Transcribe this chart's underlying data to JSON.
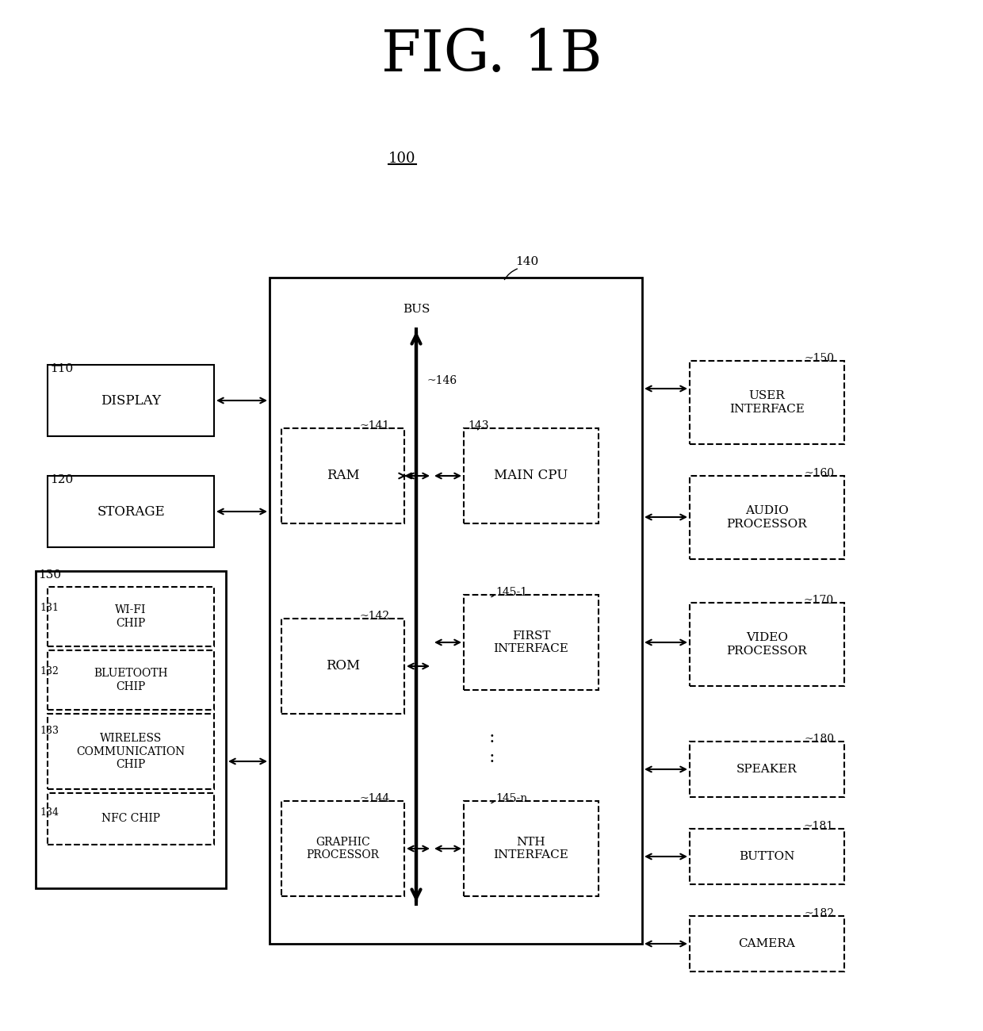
{
  "title": "FIG. 1B",
  "bg_color": "#ffffff",
  "box_color": "#ffffff",
  "box_edge": "#000000",
  "text_color": "#000000",
  "label_100": "100",
  "label_140": "140",
  "label_110": "110",
  "label_120": "120",
  "label_130": "130",
  "label_131": "131",
  "label_132": "132",
  "label_133": "133",
  "label_134": "134",
  "label_141": "141",
  "label_142": "142",
  "label_143": "143",
  "label_144": "144",
  "label_146": "146",
  "label_1451": "145-1",
  "label_145n": "145-n",
  "label_150": "150",
  "label_160": "160",
  "label_170": "170",
  "label_180": "180",
  "label_181": "181",
  "label_182": "182",
  "text_display": "DISPLAY",
  "text_storage": "STORAGE",
  "text_wifi": "WI-FI\nCHIP",
  "text_bluetooth": "BLUETOOTH\nCHIP",
  "text_wireless": "WIRELESS\nCOMMUNICATION\nCHIP",
  "text_nfc": "NFC CHIP",
  "text_ram": "RAM",
  "text_rom": "ROM",
  "text_graphic": "GRAPHIC\nPROCESSOR",
  "text_bus": "BUS",
  "text_maincpu": "MAIN CPU",
  "text_first": "FIRST\nINTERFACE",
  "text_nth": "NTH\nINTERFACE",
  "text_user": "USER\nINTERFACE",
  "text_audio": "AUDIO\nPROCESSOR",
  "text_video": "VIDEO\nPROCESSOR",
  "text_speaker": "SPEAKER",
  "text_button": "BUTTON",
  "text_camera": "CAMERA"
}
